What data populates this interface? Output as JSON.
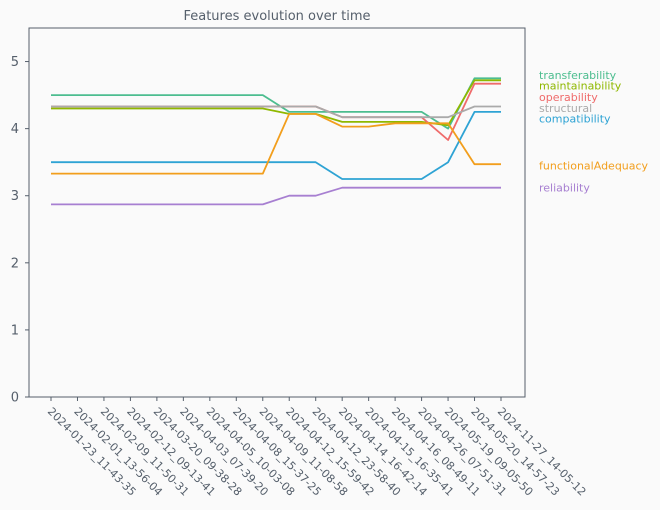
{
  "chart_data": {
    "type": "line",
    "title": "Features evolution over time",
    "xlabel": "",
    "ylabel": "",
    "ylim": [
      0,
      5.5
    ],
    "yticks": [
      "0",
      "1",
      "2",
      "3",
      "4",
      "5"
    ],
    "grid": false,
    "legend_placement": "right, labels aligned with line ends",
    "categories": [
      "2024-01-23_11-43-35",
      "2024-02-01_13-56-04",
      "2024-02-09_11-50-31",
      "2024-02-12_09-13-41",
      "2024-03-20_09-38-28",
      "2024-04-03_07-39-20",
      "2024-04-05_10-03-08",
      "2024-04-08_15-37-25",
      "2024-04-09_11-08-58",
      "2024-04-12_15-59-42",
      "2024-04-12_23-58-40",
      "2024-04-14_16-42-14",
      "2024-04-15_16-35-41",
      "2024-04-16_08-49-11",
      "2024-04-26_07-51-31",
      "2024-05-19_09-05-50",
      "2024-05-20_14-57-23",
      "2024-11-27_14-05-12"
    ],
    "series": [
      {
        "name": "transferability",
        "color": "#4cbd8f",
        "values": [
          4.5,
          4.5,
          4.5,
          4.5,
          4.5,
          4.5,
          4.5,
          4.5,
          4.5,
          4.25,
          4.25,
          4.25,
          4.25,
          4.25,
          4.25,
          4.0,
          4.75,
          4.75
        ]
      },
      {
        "name": "maintainability",
        "color": "#8fb800",
        "values": [
          4.3,
          4.3,
          4.3,
          4.3,
          4.3,
          4.3,
          4.3,
          4.3,
          4.3,
          4.22,
          4.22,
          4.1,
          4.1,
          4.1,
          4.1,
          4.05,
          4.72,
          4.72
        ]
      },
      {
        "name": "operability",
        "color": "#ef6b6b",
        "values": [
          4.33,
          4.33,
          4.33,
          4.33,
          4.33,
          4.33,
          4.33,
          4.33,
          4.33,
          4.33,
          4.33,
          4.17,
          4.17,
          4.17,
          4.17,
          3.83,
          4.67,
          4.67
        ]
      },
      {
        "name": "structural",
        "color": "#aaaaaa",
        "values": [
          4.33,
          4.33,
          4.33,
          4.33,
          4.33,
          4.33,
          4.33,
          4.33,
          4.33,
          4.33,
          4.33,
          4.17,
          4.17,
          4.17,
          4.17,
          4.17,
          4.33,
          4.33
        ]
      },
      {
        "name": "compatibility",
        "color": "#2ea3d4",
        "values": [
          3.5,
          3.5,
          3.5,
          3.5,
          3.5,
          3.5,
          3.5,
          3.5,
          3.5,
          3.5,
          3.5,
          3.25,
          3.25,
          3.25,
          3.25,
          3.5,
          4.25,
          4.25
        ]
      },
      {
        "name": "functionalAdequacy",
        "color": "#f29e1c",
        "values": [
          3.33,
          3.33,
          3.33,
          3.33,
          3.33,
          3.33,
          3.33,
          3.33,
          3.33,
          4.22,
          4.22,
          4.03,
          4.03,
          4.08,
          4.08,
          4.08,
          3.47,
          3.47
        ]
      },
      {
        "name": "reliability",
        "color": "#a77fd1",
        "values": [
          2.87,
          2.87,
          2.87,
          2.87,
          2.87,
          2.87,
          2.87,
          2.87,
          2.87,
          3.0,
          3.0,
          3.12,
          3.12,
          3.12,
          3.12,
          3.12,
          3.12,
          3.12
        ]
      }
    ],
    "legend_label_y": [
      4.8,
      4.64,
      4.47,
      4.31,
      4.15,
      3.45,
      3.12
    ]
  }
}
